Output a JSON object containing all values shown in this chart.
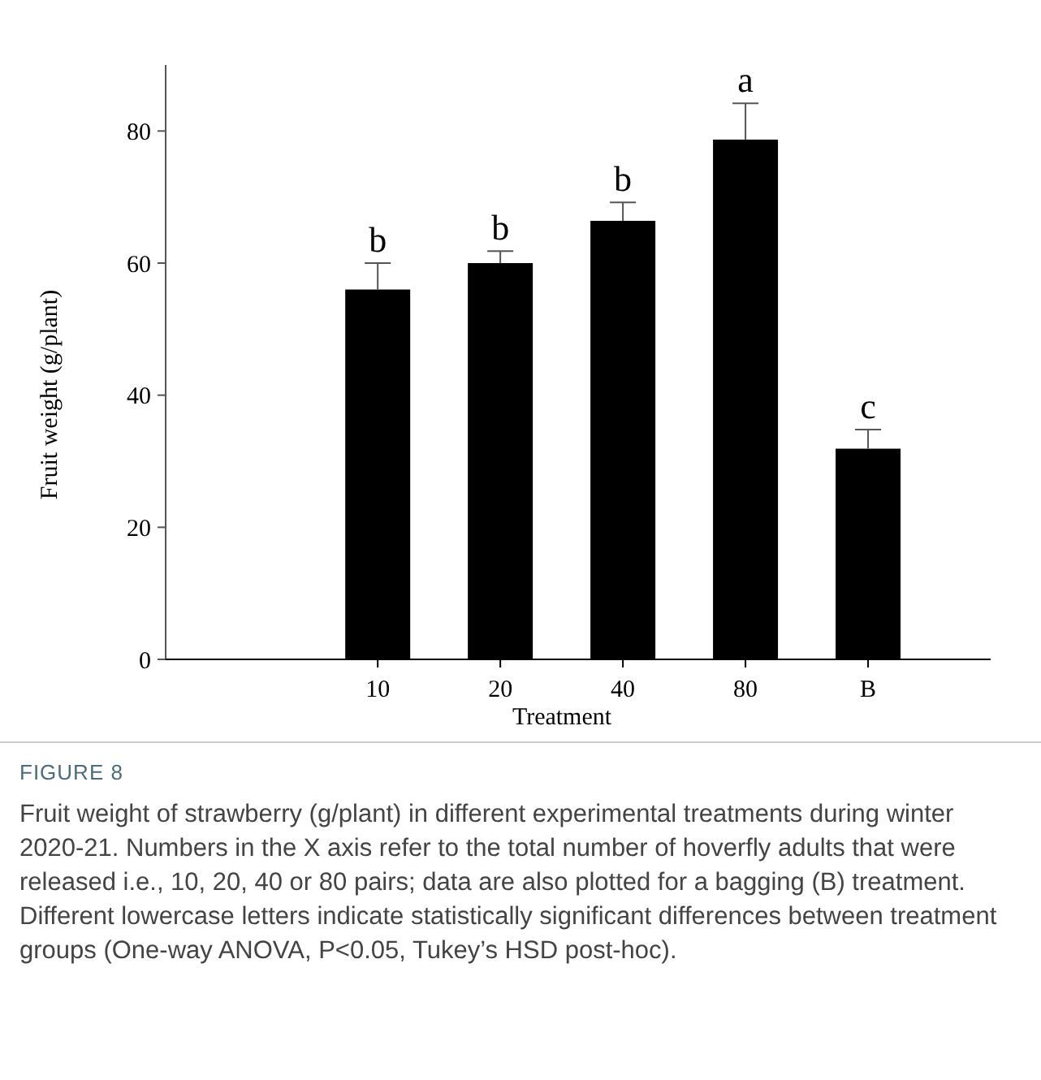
{
  "chart_data": {
    "type": "bar",
    "title": "FIGURE 8",
    "xlabel": "Treatment",
    "ylabel": "Fruit weight (g/plant)",
    "categories": [
      "10",
      "20",
      "40",
      "80",
      "B"
    ],
    "values": [
      56.0,
      60.0,
      66.4,
      78.7,
      31.9
    ],
    "errors": [
      4.0,
      1.8,
      2.8,
      5.5,
      2.9
    ],
    "color": "#000000",
    "ylim": [
      0,
      90
    ],
    "yticks": [
      0,
      20,
      40,
      60,
      80
    ],
    "grid": false,
    "annotations": [
      {
        "text": "b",
        "x": "10",
        "y": 60.0
      },
      {
        "text": "b",
        "x": "20",
        "y": 61.8
      },
      {
        "text": "b",
        "x": "40",
        "y": 69.2
      },
      {
        "text": "a",
        "x": "80",
        "y": 84.2
      },
      {
        "text": "c",
        "x": "B",
        "y": 34.8
      },
      "Fruit weight of strawberry (g/plant) in different experimental treatments during winter 2020-21. Numbers in the X axis refer to the total number of hoverfly adults that were released i.e., 10, 20, 40 or 80 pairs; data are also plotted for a bagging (B) treatment. Different lowercase letters indicate statistically significant differences between treatment groups (One-way ANOVA, P<0.05, Tukey’s HSD post-hoc)."
    ]
  }
}
